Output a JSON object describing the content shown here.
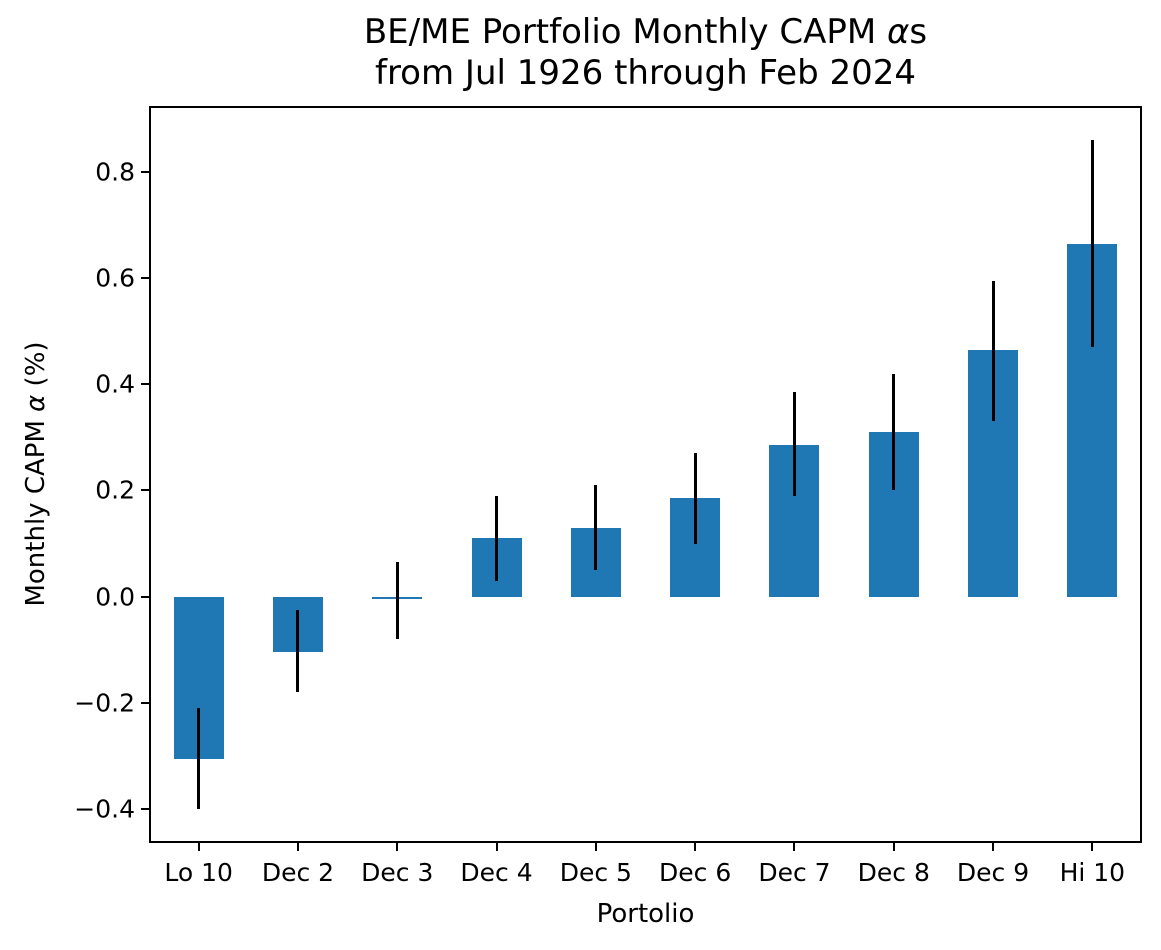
{
  "title": {
    "line1_prefix": "BE/ME Portfolio Monthly CAPM ",
    "line1_alpha": "α",
    "line1_suffix": "s",
    "line2": "from Jul 1926 through Feb 2024"
  },
  "ylabel_parts": {
    "prefix": "Monthly CAPM ",
    "alpha": "α",
    "suffix": " (%)"
  },
  "chart_data": {
    "type": "bar",
    "title": "BE/ME Portfolio Monthly CAPM αs from Jul 1926 through Feb 2024",
    "xlabel": "Portolio",
    "ylabel": "Monthly CAPM α (%)",
    "categories": [
      "Lo 10",
      "Dec 2",
      "Dec 3",
      "Dec 4",
      "Dec 5",
      "Dec 6",
      "Dec 7",
      "Dec 8",
      "Dec 9",
      "Hi 10"
    ],
    "values": [
      -0.305,
      -0.105,
      -0.005,
      0.11,
      0.13,
      0.185,
      0.285,
      0.31,
      0.465,
      0.665
    ],
    "error_low": [
      -0.4,
      -0.18,
      -0.08,
      0.03,
      0.05,
      0.1,
      0.19,
      0.2,
      0.33,
      0.47
    ],
    "error_high": [
      -0.21,
      -0.025,
      0.065,
      0.19,
      0.21,
      0.27,
      0.385,
      0.42,
      0.595,
      0.86
    ],
    "yticks": {
      "values": [
        -0.4,
        -0.2,
        0.0,
        0.2,
        0.4,
        0.6,
        0.8
      ],
      "labels": [
        "−0.4",
        "−0.2",
        "0.0",
        "0.2",
        "0.4",
        "0.6",
        "0.8"
      ]
    },
    "ylim": [
      -0.464,
      0.924
    ],
    "bar_color": "#1f77b4",
    "error_color": "#000000",
    "grid": false,
    "legend": null
  }
}
